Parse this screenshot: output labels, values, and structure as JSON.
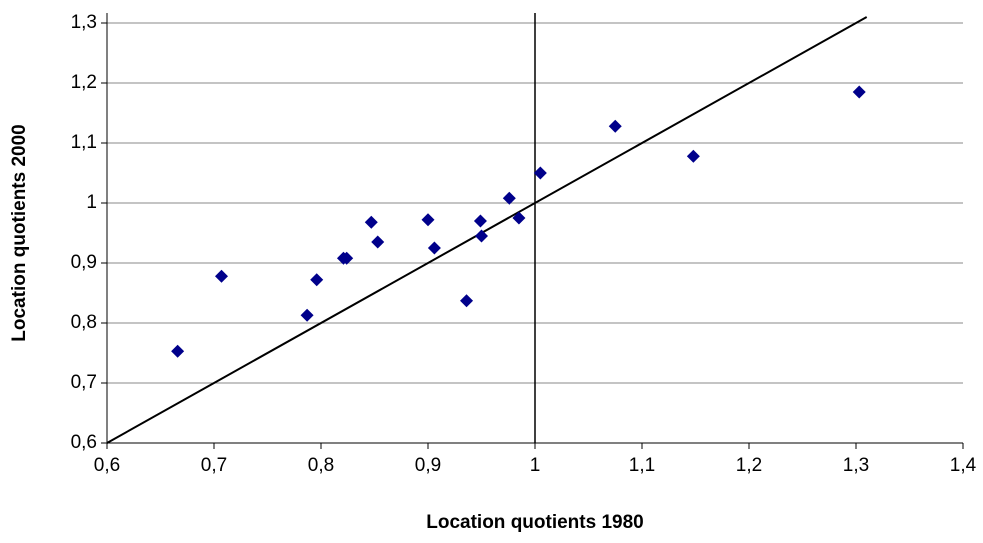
{
  "chart_data": {
    "type": "scatter",
    "x_label": "Location quotients 1980",
    "y_label": "Location quotients 2000",
    "x": [
      0.666,
      0.707,
      0.787,
      0.796,
      0.821,
      0.824,
      0.847,
      0.853,
      0.9,
      0.906,
      0.936,
      0.949,
      0.95,
      0.976,
      0.985,
      1.005,
      1.075,
      1.148,
      1.303
    ],
    "series": [
      {
        "color": "#00008b",
        "values": [
          0.753,
          0.878,
          0.813,
          0.872,
          0.908,
          0.908,
          0.968,
          0.935,
          0.972,
          0.925,
          0.837,
          0.97,
          0.945,
          1.008,
          0.975,
          1.05,
          1.128,
          1.078,
          1.185
        ]
      }
    ],
    "xlim": [
      0.6,
      1.4
    ],
    "ylim": [
      0.6,
      1.3
    ],
    "xticks": [
      {
        "value": 0.6,
        "label": "0,6"
      },
      {
        "value": 0.7,
        "label": "0,7"
      },
      {
        "value": 0.8,
        "label": "0,8"
      },
      {
        "value": 0.9,
        "label": "0,9"
      },
      1,
      {
        "value": 1.1,
        "label": "1,1"
      },
      {
        "value": 1.2,
        "label": "1,2"
      },
      {
        "value": 1.3,
        "label": "1,3"
      },
      {
        "value": 1.4,
        "label": "1,4"
      }
    ],
    "yticks": [
      {
        "value": 0.6,
        "label": "0,6"
      },
      {
        "value": 0.7,
        "label": "0,7"
      },
      {
        "value": 0.8,
        "label": "0,8"
      },
      {
        "value": 0.9,
        "label": "0,9"
      },
      1,
      {
        "value": 1.1,
        "label": "1,1"
      },
      {
        "value": 1.2,
        "label": "1,2"
      },
      {
        "value": 1.3,
        "label": "1,3"
      }
    ],
    "grid": true,
    "reference_lines": {
      "x": 1,
      "diagonal": true
    }
  }
}
